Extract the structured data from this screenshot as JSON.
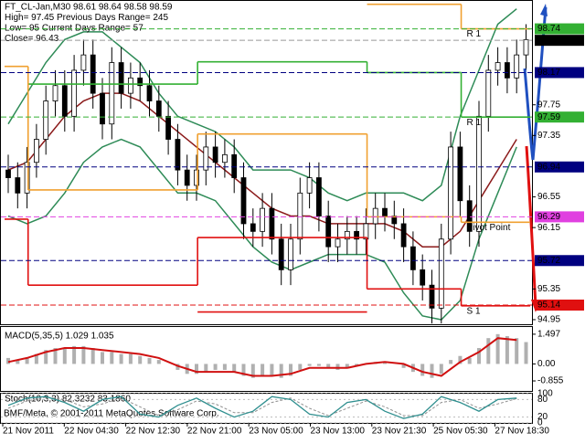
{
  "chart_data": {
    "type": "candlestick",
    "info_lines": [
      "FT_CL-Jan,M30  98.61 98.64 98.58 98.59",
      "High= 97.45   Previous Days Range= 245",
      "Low= 95   Current Days Range= 57",
      "Close= 96.43"
    ],
    "x_labels": [
      "21 Nov 2011",
      "22 Nov 04:30",
      "22 Nov 12:30",
      "22 Nov 21:00",
      "23 Nov 05:00",
      "23 Nov 13:00",
      "23 Nov 21:30",
      "25 Nov 05:30",
      "27 Nov 18:30"
    ],
    "ylim": [
      94.89,
      99.08
    ],
    "yticks": [
      97.75,
      97.35,
      96.55,
      96.15,
      95.35,
      94.95
    ],
    "price_markers": [
      {
        "value": 98.74,
        "color": "#33b033"
      },
      {
        "value": 98.59,
        "color": "#000000"
      },
      {
        "value": 98.17,
        "color": "#000080"
      },
      {
        "value": 97.59,
        "color": "#33b033"
      },
      {
        "value": 96.94,
        "color": "#000080"
      },
      {
        "value": 96.29,
        "color": "#e040e0"
      },
      {
        "value": 95.72,
        "color": "#000080"
      },
      {
        "value": 95.14,
        "color": "#e01010"
      }
    ],
    "open": [
      96.9,
      96.8,
      96.6,
      97.0,
      97.3,
      97.8,
      98.0,
      97.6,
      98.2,
      98.4,
      97.9,
      97.5,
      98.3,
      97.9,
      98.1,
      98.0,
      97.8,
      97.6,
      97.3,
      96.9,
      96.7,
      96.9,
      97.2,
      97.0,
      97.1,
      96.8,
      96.2,
      96.1,
      96.4,
      96.0,
      95.6,
      96.0,
      96.6,
      96.8,
      96.3,
      95.9,
      96.0,
      96.1,
      96.0,
      96.2,
      96.4,
      96.3,
      96.2,
      95.9,
      95.6,
      95.4,
      95.1,
      96.0,
      97.2,
      96.5,
      96.1,
      97.6,
      98.2,
      98.3,
      98.1,
      98.4
    ],
    "high": [
      97.1,
      97.0,
      97.2,
      97.5,
      98.0,
      98.2,
      98.2,
      98.4,
      98.6,
      98.6,
      98.1,
      98.5,
      98.5,
      98.3,
      98.3,
      98.2,
      98.0,
      97.8,
      97.5,
      97.1,
      97.1,
      97.4,
      97.4,
      97.3,
      97.3,
      97.0,
      96.4,
      96.6,
      96.6,
      96.2,
      96.2,
      96.8,
      97.0,
      97.0,
      96.5,
      96.2,
      96.3,
      96.3,
      96.4,
      96.6,
      96.6,
      96.5,
      96.4,
      96.1,
      95.8,
      95.6,
      96.2,
      97.4,
      97.4,
      96.7,
      97.8,
      98.4,
      98.5,
      98.5,
      98.6,
      98.8
    ],
    "low": [
      96.6,
      96.4,
      96.4,
      96.8,
      97.1,
      97.6,
      97.4,
      97.4,
      98.0,
      97.7,
      97.3,
      97.3,
      97.7,
      97.7,
      97.8,
      97.6,
      97.4,
      97.1,
      96.7,
      96.5,
      96.5,
      96.7,
      96.8,
      96.8,
      96.6,
      96.0,
      95.9,
      95.9,
      95.8,
      95.4,
      95.4,
      95.8,
      96.4,
      96.1,
      95.7,
      95.7,
      95.8,
      95.8,
      95.8,
      96.0,
      96.1,
      96.0,
      95.7,
      95.4,
      95.2,
      94.9,
      94.9,
      95.8,
      96.3,
      95.9,
      95.9,
      97.4,
      98.0,
      97.9,
      97.9,
      98.2
    ],
    "close": [
      96.8,
      96.6,
      97.0,
      97.3,
      97.8,
      98.0,
      97.6,
      98.2,
      98.4,
      97.9,
      97.5,
      98.3,
      97.9,
      98.1,
      98.0,
      97.8,
      97.6,
      97.3,
      96.9,
      96.7,
      96.9,
      97.2,
      97.0,
      97.1,
      96.8,
      96.2,
      96.1,
      96.4,
      96.0,
      95.6,
      96.0,
      96.6,
      96.8,
      96.3,
      95.9,
      96.0,
      96.1,
      96.0,
      96.2,
      96.4,
      96.3,
      96.2,
      95.9,
      95.6,
      95.4,
      95.1,
      96.0,
      97.2,
      96.5,
      96.1,
      97.6,
      98.2,
      98.3,
      98.1,
      98.4,
      98.6
    ],
    "bands": [
      {
        "color": "#2e8b57",
        "values": [
          97.5,
          97.9,
          98.3,
          98.6,
          98.7,
          98.7,
          98.5,
          98.3,
          97.9,
          97.6,
          97.5,
          97.4,
          97.2,
          96.9,
          96.9,
          96.9,
          96.8,
          96.6,
          96.5,
          96.6,
          96.6,
          96.6,
          96.5,
          96.7,
          97.6,
          98.2,
          98.8,
          99.0
        ]
      },
      {
        "color": "#8b1a1a",
        "values": [
          96.9,
          97.0,
          97.3,
          97.6,
          97.8,
          97.9,
          97.9,
          97.8,
          97.6,
          97.4,
          97.2,
          97.0,
          96.8,
          96.6,
          96.4,
          96.3,
          96.3,
          96.2,
          96.2,
          96.2,
          96.2,
          96.1,
          95.9,
          95.9,
          96.1,
          96.5,
          96.9,
          97.3
        ]
      },
      {
        "color": "#2e8b57",
        "values": [
          96.3,
          96.2,
          96.3,
          96.6,
          97.0,
          97.2,
          97.3,
          97.2,
          96.9,
          96.6,
          96.6,
          96.5,
          96.2,
          95.9,
          95.7,
          95.6,
          95.7,
          95.8,
          95.8,
          95.8,
          95.7,
          95.3,
          95.0,
          94.95,
          95.2,
          96.0,
          96.6,
          97.2
        ]
      }
    ],
    "levels": [
      {
        "name": "R 1",
        "color": "#f0a030",
        "values": [
          null,
          null,
          null,
          99.06,
          98.74
        ]
      },
      {
        "name": "R 1",
        "color": "#33b033",
        "values": [
          null,
          98.02,
          98.31,
          98.17,
          97.59
        ]
      },
      {
        "name": "Pivot Point",
        "color": "#f0a030",
        "values": [
          98.25,
          96.64,
          97.37,
          96.29,
          96.22
        ]
      },
      {
        "name": "S 1",
        "color": "#e01010",
        "values": [
          96.26,
          95.4,
          96.02,
          95.35,
          95.13
        ]
      },
      {
        "color": "#e01010",
        "values": [
          null,
          null,
          95.05,
          null,
          null
        ]
      }
    ],
    "macd": {
      "title": "MACD(5,35,5) 1.029 1.035",
      "ylim": [
        -1.36,
        1.86
      ],
      "yticks": [
        1.497,
        {
          "value": 0,
          "label": "0.00"
        },
        -0.855
      ],
      "histogram": [
        0.3,
        0.2,
        0.3,
        0.5,
        0.7,
        0.8,
        0.8,
        0.9,
        0.9,
        0.8,
        0.6,
        0.6,
        0.5,
        0.5,
        0.4,
        0.3,
        0.2,
        0.0,
        -0.3,
        -0.5,
        -0.5,
        -0.4,
        -0.3,
        -0.3,
        -0.4,
        -0.6,
        -0.7,
        -0.6,
        -0.6,
        -0.7,
        -0.6,
        -0.3,
        -0.1,
        -0.1,
        -0.2,
        -0.3,
        -0.2,
        -0.1,
        0.0,
        0.1,
        0.1,
        0.0,
        -0.2,
        -0.4,
        -0.6,
        -0.7,
        -0.5,
        0.2,
        0.4,
        0.3,
        0.8,
        1.3,
        1.5,
        1.4,
        1.3,
        1.1
      ],
      "signal": [
        0.1,
        0.3,
        0.6,
        0.8,
        0.8,
        0.7,
        0.6,
        0.5,
        0.3,
        -0.1,
        -0.4,
        -0.4,
        -0.4,
        -0.6,
        -0.6,
        -0.5,
        -0.2,
        -0.2,
        -0.2,
        0.0,
        0.1,
        0.0,
        -0.4,
        -0.6,
        0.1,
        0.6,
        1.3,
        1.2
      ],
      "hist_color": "#b0b0b0",
      "signal_color": "#d01010"
    },
    "stoch": {
      "title": "Stoch(10,3,3) 82.3232 83.1860",
      "ylim": [
        0,
        100
      ],
      "yticks": [
        100,
        80,
        20,
        0
      ],
      "main": [
        60,
        85,
        90,
        70,
        40,
        80,
        90,
        30,
        20,
        60,
        85,
        50,
        20,
        40,
        90,
        80,
        30,
        20,
        70,
        80,
        40,
        15,
        30,
        90,
        70,
        40,
        80,
        85
      ],
      "signal": [
        50,
        75,
        88,
        80,
        55,
        65,
        85,
        55,
        25,
        45,
        75,
        65,
        35,
        35,
        70,
        85,
        50,
        25,
        50,
        75,
        55,
        25,
        25,
        70,
        80,
        50,
        65,
        83
      ],
      "main_color": "#2f8f8f",
      "signal_color": "#909090"
    },
    "watermark": "BMF/Meta, © 2001-2011 MetaQuotes Software Corp."
  }
}
